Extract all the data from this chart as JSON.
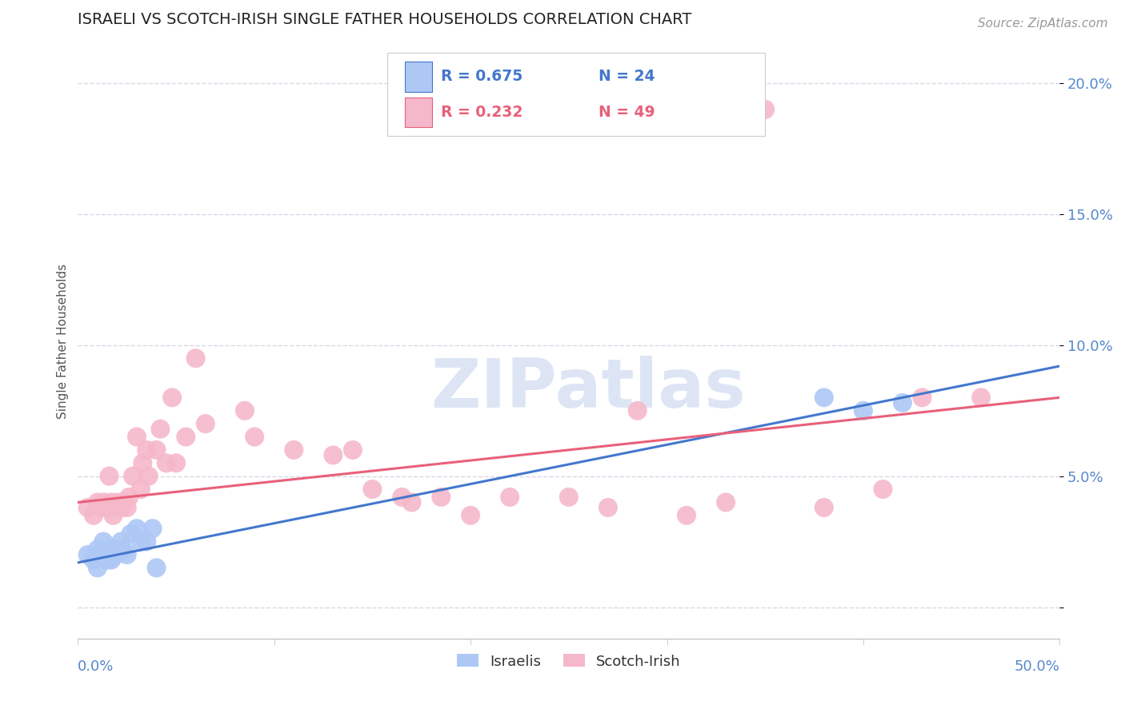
{
  "title": "ISRAELI VS SCOTCH-IRISH SINGLE FATHER HOUSEHOLDS CORRELATION CHART",
  "source": "Source: ZipAtlas.com",
  "ylabel": "Single Father Households",
  "ytick_vals": [
    0.0,
    0.05,
    0.1,
    0.15,
    0.2
  ],
  "ytick_labels": [
    "",
    "5.0%",
    "10.0%",
    "15.0%",
    "20.0%"
  ],
  "xlim": [
    0.0,
    0.5
  ],
  "ylim": [
    -0.012,
    0.215
  ],
  "legend_r_israeli": "R = 0.675",
  "legend_n_israeli": "N = 24",
  "legend_r_scotch": "R = 0.232",
  "legend_n_scotch": "N = 49",
  "israeli_color": "#adc8f5",
  "scotch_color": "#f5b8ca",
  "israeli_line_color": "#4477cc",
  "scotch_line_color": "#e8607a",
  "israeli_points_x": [
    0.005,
    0.008,
    0.01,
    0.01,
    0.012,
    0.013,
    0.015,
    0.016,
    0.017,
    0.018,
    0.019,
    0.02,
    0.022,
    0.023,
    0.025,
    0.027,
    0.03,
    0.032,
    0.035,
    0.038,
    0.04,
    0.38,
    0.4,
    0.42
  ],
  "israeli_points_y": [
    0.02,
    0.018,
    0.022,
    0.015,
    0.02,
    0.025,
    0.018,
    0.022,
    0.018,
    0.022,
    0.02,
    0.022,
    0.025,
    0.022,
    0.02,
    0.028,
    0.03,
    0.025,
    0.025,
    0.03,
    0.015,
    0.08,
    0.075,
    0.078
  ],
  "scotch_points_x": [
    0.005,
    0.008,
    0.01,
    0.012,
    0.013,
    0.015,
    0.016,
    0.017,
    0.018,
    0.02,
    0.022,
    0.023,
    0.025,
    0.026,
    0.028,
    0.03,
    0.032,
    0.033,
    0.035,
    0.036,
    0.04,
    0.042,
    0.045,
    0.048,
    0.05,
    0.055,
    0.06,
    0.065,
    0.085,
    0.09,
    0.11,
    0.13,
    0.14,
    0.15,
    0.165,
    0.17,
    0.185,
    0.2,
    0.22,
    0.25,
    0.27,
    0.285,
    0.31,
    0.33,
    0.35,
    0.38,
    0.41,
    0.43,
    0.46
  ],
  "scotch_points_y": [
    0.038,
    0.035,
    0.04,
    0.038,
    0.04,
    0.038,
    0.05,
    0.04,
    0.035,
    0.04,
    0.038,
    0.04,
    0.038,
    0.042,
    0.05,
    0.065,
    0.045,
    0.055,
    0.06,
    0.05,
    0.06,
    0.068,
    0.055,
    0.08,
    0.055,
    0.065,
    0.095,
    0.07,
    0.075,
    0.065,
    0.06,
    0.058,
    0.06,
    0.045,
    0.042,
    0.04,
    0.042,
    0.035,
    0.042,
    0.042,
    0.038,
    0.075,
    0.035,
    0.04,
    0.19,
    0.038,
    0.045,
    0.08,
    0.08
  ],
  "israeli_line_y_start": 0.017,
  "israeli_line_y_end": 0.092,
  "scotch_line_y_start": 0.04,
  "scotch_line_y_end": 0.08,
  "background_color": "#ffffff",
  "grid_color": "#d8d8e8",
  "title_color": "#222222",
  "axis_label_color": "#5588cc",
  "watermark_color": "#dde5f5"
}
